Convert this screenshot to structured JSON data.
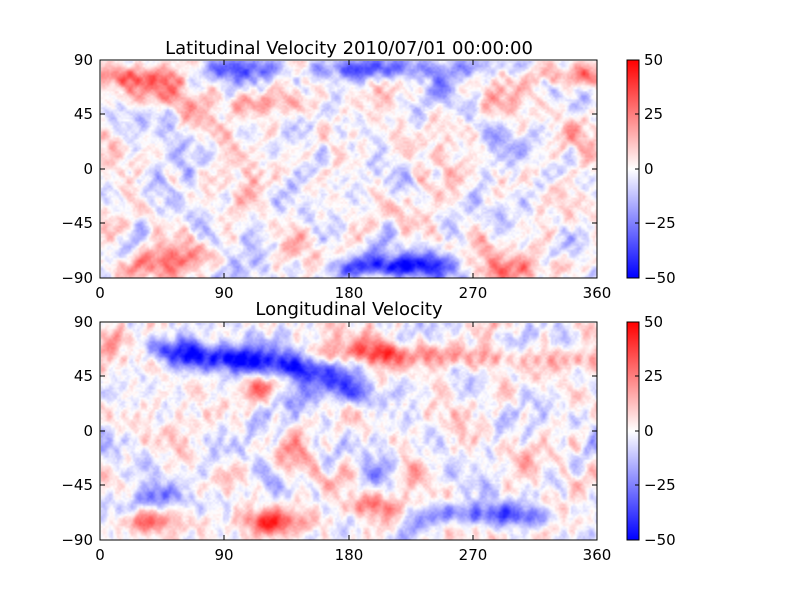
{
  "chart_data": [
    {
      "type": "heatmap",
      "title": "Latitudinal Velocity 2010/07/01 00:00:00",
      "xlabel": "",
      "ylabel": "",
      "xlim": [
        0,
        360
      ],
      "ylim": [
        -90,
        90
      ],
      "x_ticks": [
        "0",
        "90",
        "180",
        "270",
        "360"
      ],
      "y_ticks": [
        "90",
        "45",
        "0",
        "−45",
        "−90"
      ],
      "colorbar": {
        "ticks": [
          "50",
          "25",
          "0",
          "−25",
          "−50"
        ],
        "vmin": -50,
        "vmax": 50
      },
      "colormap": {
        "negative": "#0000ff",
        "zero": "#ffffff",
        "positive": "#ff0000"
      },
      "seed": 17,
      "features": [
        {
          "lon": 190,
          "lat": 83,
          "value": -34
        },
        {
          "lon": 100,
          "lat": 83,
          "value": -22
        },
        {
          "lon": 260,
          "lat": 85,
          "value": -18
        },
        {
          "lon": 30,
          "lat": 75,
          "value": 18
        },
        {
          "lon": 345,
          "lat": 78,
          "value": 20
        },
        {
          "lon": 120,
          "lat": 55,
          "value": 16
        },
        {
          "lon": 40,
          "lat": 60,
          "value": 12
        },
        {
          "lon": 200,
          "lat": -82,
          "value": -34
        },
        {
          "lon": 230,
          "lat": -78,
          "value": -24
        },
        {
          "lon": 15,
          "lat": -80,
          "value": 15
        },
        {
          "lon": 300,
          "lat": -82,
          "value": 15
        },
        {
          "lon": 60,
          "lat": -72,
          "value": 12
        }
      ]
    },
    {
      "type": "heatmap",
      "title": "Longitudinal Velocity",
      "xlabel": "",
      "ylabel": "",
      "xlim": [
        0,
        360
      ],
      "ylim": [
        -90,
        90
      ],
      "x_ticks": [
        "0",
        "90",
        "180",
        "270",
        "360"
      ],
      "y_ticks": [
        "90",
        "45",
        "0",
        "−45",
        "−90"
      ],
      "colorbar": {
        "ticks": [
          "50",
          "25",
          "0",
          "−25",
          "−50"
        ],
        "vmin": -50,
        "vmax": 50
      },
      "colormap": {
        "negative": "#0000ff",
        "zero": "#ffffff",
        "positive": "#ff0000"
      },
      "seed": 53,
      "features": [
        {
          "lon": 95,
          "lat": 60,
          "value": -44
        },
        {
          "lon": 140,
          "lat": 52,
          "value": -34
        },
        {
          "lon": 160,
          "lat": 40,
          "value": -28
        },
        {
          "lon": 60,
          "lat": 68,
          "value": -26
        },
        {
          "lon": 180,
          "lat": 30,
          "value": -18
        },
        {
          "lon": 200,
          "lat": 65,
          "value": 26
        },
        {
          "lon": 260,
          "lat": 62,
          "value": 20
        },
        {
          "lon": 130,
          "lat": 38,
          "value": 20
        },
        {
          "lon": 330,
          "lat": 60,
          "value": 15
        },
        {
          "lon": 20,
          "lat": -75,
          "value": 26
        },
        {
          "lon": 130,
          "lat": -75,
          "value": 24
        },
        {
          "lon": 200,
          "lat": -62,
          "value": 18
        },
        {
          "lon": 270,
          "lat": -68,
          "value": -30
        },
        {
          "lon": 320,
          "lat": -72,
          "value": -20
        },
        {
          "lon": 40,
          "lat": -55,
          "value": -16
        }
      ]
    }
  ]
}
